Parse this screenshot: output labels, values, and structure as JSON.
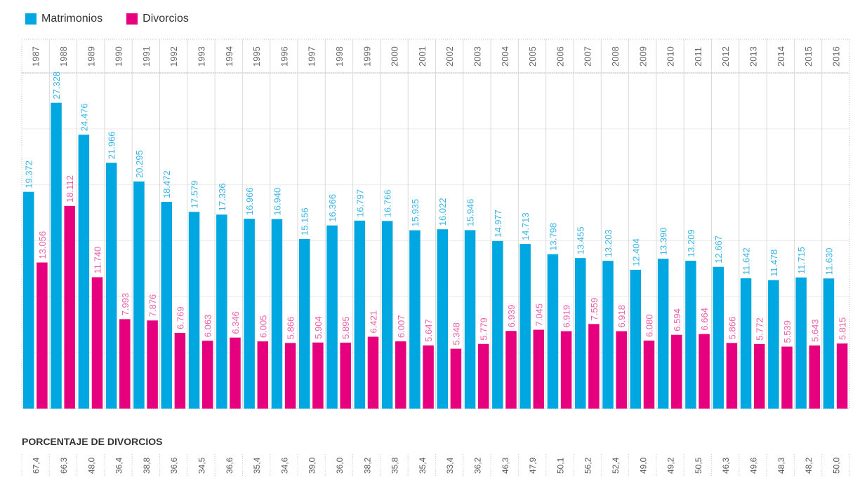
{
  "legend": {
    "matrimonios_label": "Matrimonios",
    "divorcios_label": "Divorcios"
  },
  "colors": {
    "matrimonios": "#00a7e1",
    "divorcios": "#e6007e",
    "matrimonios_label": "#3bb4e6",
    "divorcios_label": "#ee61aa"
  },
  "percentage_section": {
    "title": "PORCENTAJE DE DIVORCIOS",
    "values": [
      "67,4",
      "66,3",
      "48,0",
      "36,4",
      "38,8",
      "36,6",
      "34,5",
      "36,6",
      "35,4",
      "34,6",
      "39,0",
      "36,0",
      "38,2",
      "35,8",
      "35,4",
      "33,4",
      "36,2",
      "46,3",
      "47,9",
      "50,1",
      "56,2",
      "52,4",
      "49,0",
      "49,2",
      "50,5",
      "46,3",
      "49,6",
      "48,3",
      "48,2",
      "50,0"
    ]
  },
  "chart_data": {
    "type": "bar",
    "categories": [
      "1987",
      "1988",
      "1989",
      "1990",
      "1991",
      "1992",
      "1993",
      "1994",
      "1995",
      "1996",
      "1997",
      "1998",
      "1999",
      "2000",
      "2001",
      "2002",
      "2003",
      "2004",
      "2005",
      "2006",
      "2007",
      "2008",
      "2009",
      "2010",
      "2011",
      "2012",
      "2013",
      "2014",
      "2015",
      "2016"
    ],
    "series": [
      {
        "name": "Matrimonios",
        "values": [
          19372,
          27328,
          24476,
          21966,
          20295,
          18472,
          17579,
          17336,
          16966,
          16940,
          15156,
          16366,
          16797,
          16766,
          15935,
          16022,
          15946,
          14977,
          14713,
          13798,
          13455,
          13203,
          12404,
          13390,
          13209,
          12667,
          11642,
          11478,
          11715,
          11630
        ],
        "labels": [
          "19.372",
          "27.328",
          "24.476",
          "21.966",
          "20.295",
          "18.472",
          "17.579",
          "17.336",
          "16.966",
          "16.940",
          "15.156",
          "16.366",
          "16.797",
          "16.766",
          "15.935",
          "16.022",
          "15.946",
          "14.977",
          "14.713",
          "13.798",
          "13.455",
          "13.203",
          "12.404",
          "13.390",
          "13.209",
          "12.667",
          "11.642",
          "11.478",
          "11.715",
          "11.630"
        ]
      },
      {
        "name": "Divorcios",
        "values": [
          13056,
          18112,
          11740,
          7993,
          7876,
          6769,
          6063,
          6346,
          6005,
          5866,
          5904,
          5895,
          6421,
          6007,
          5647,
          5348,
          5779,
          6939,
          7045,
          6919,
          7559,
          6918,
          6080,
          6594,
          6664,
          5866,
          5772,
          5539,
          5643,
          5815
        ],
        "labels": [
          "13.056",
          "18.112",
          "11.740",
          "7.993",
          "7.876",
          "6.769",
          "6.063",
          "6.346",
          "6.005",
          "5.866",
          "5.904",
          "5.895",
          "6.421",
          "6.007",
          "5.647",
          "5.348",
          "5.779",
          "6.939",
          "7.045",
          "6.919",
          "7.559",
          "6.918",
          "6.080",
          "6.594",
          "6.664",
          "5.866",
          "5.772",
          "5.539",
          "5.643",
          "5.815"
        ]
      }
    ],
    "ylim": [
      0,
      30000
    ],
    "grid": true,
    "legend_position": "top-left"
  }
}
